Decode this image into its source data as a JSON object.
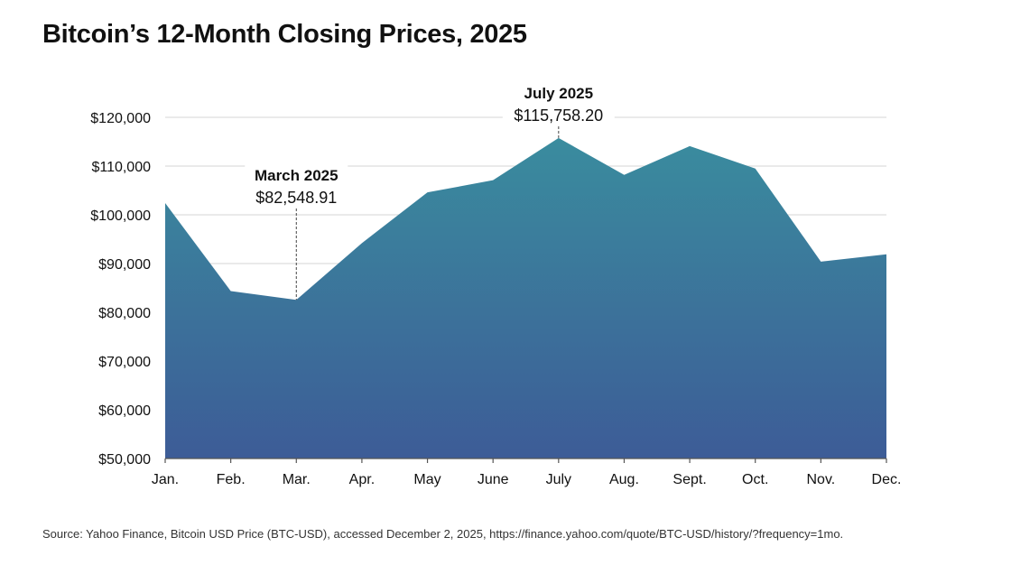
{
  "title": "Bitcoin’s 12-Month Closing Prices, 2025",
  "source": "Source: Yahoo Finance, Bitcoin USD Price (BTC-USD), accessed December 2, 2025, https://finance.yahoo.com/quote/BTC-USD/history/?frequency=1mo.",
  "colors": {
    "area_top": "#3A8C9E",
    "area_bottom": "#3D5C97",
    "gridline": "#dddddd",
    "text": "#111111"
  },
  "chart_data": {
    "type": "area",
    "title": "Bitcoin’s 12-Month Closing Prices, 2025",
    "categories": [
      "Jan.",
      "Feb.",
      "Mar.",
      "Apr.",
      "May",
      "June",
      "July",
      "Aug.",
      "Sept.",
      "Oct.",
      "Nov.",
      "Dec."
    ],
    "values": [
      102400,
      84350,
      82548.91,
      94200,
      104600,
      107100,
      115758.2,
      108200,
      114100,
      109500,
      90400,
      91900
    ],
    "ylim": [
      50000,
      120000
    ],
    "yticks": [
      50000,
      60000,
      70000,
      80000,
      90000,
      100000,
      110000,
      120000
    ],
    "ytick_labels": [
      "$50,000",
      "$60,000",
      "$70,000",
      "$80,000",
      "$90,000",
      "$100,000",
      "$110,000",
      "$120,000"
    ],
    "xlabel": "",
    "ylabel": "",
    "grid": true,
    "legend": "none",
    "annotations": [
      {
        "category": "Mar.",
        "label": "March 2025",
        "value_text": "$82,548.91"
      },
      {
        "category": "July",
        "label": "July 2025",
        "value_text": "$115,758.20"
      }
    ]
  }
}
